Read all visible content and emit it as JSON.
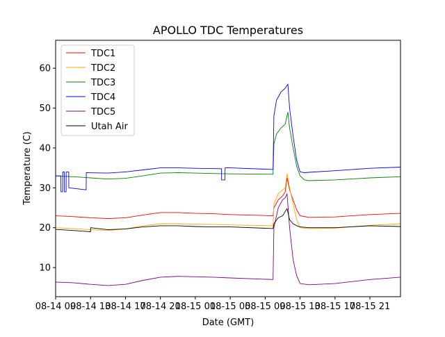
{
  "chart_data": {
    "type": "line",
    "title": "APOLLO TDC Temperatures",
    "xlabel": "Date (GMT)",
    "ylabel": "Temperature (C)",
    "xlim": [
      0,
      39.5
    ],
    "ylim": [
      2.7,
      67
    ],
    "grid": false,
    "legend_position": "top-left",
    "y_ticks": [
      10,
      20,
      30,
      40,
      50,
      60
    ],
    "x_tick_positions": [
      0,
      4,
      8,
      12,
      16,
      20,
      24,
      28,
      32,
      36
    ],
    "x_tick_labels": [
      "08-14 09",
      "08-14 13",
      "08-14 17",
      "08-14 21",
      "08-15 01",
      "08-15 05",
      "08-15 09",
      "08-15 13",
      "08-15 17",
      "08-15 21"
    ],
    "x_unit": "hours since 08-14 09:00",
    "series": [
      {
        "name": "TDC1",
        "color": "#ff0000",
        "x": [
          -0.2,
          2,
          4,
          6,
          8,
          10,
          12,
          14,
          16,
          18,
          20,
          24.9,
          25.0,
          25.5,
          26.0,
          26.3,
          26.5,
          26.8,
          27.2,
          27.6,
          28.0,
          29,
          32,
          36,
          39.5
        ],
        "y": [
          23.0,
          22.8,
          22.5,
          22.3,
          22.5,
          23.2,
          23.8,
          23.8,
          23.6,
          23.5,
          23.3,
          23.0,
          25.0,
          27.0,
          28.0,
          29.0,
          32.5,
          29.5,
          27.0,
          24.5,
          23.0,
          22.6,
          22.7,
          23.3,
          23.6
        ]
      },
      {
        "name": "TDC2",
        "color": "#ffa500",
        "x": [
          -0.2,
          2,
          4,
          6,
          8,
          10,
          12,
          14,
          16,
          18,
          20,
          24.9,
          25.0,
          25.5,
          26.0,
          26.3,
          26.5,
          26.8,
          27.2,
          27.6,
          28.0,
          29,
          32,
          36,
          39.5
        ],
        "y": [
          20.0,
          19.8,
          19.5,
          19.3,
          19.7,
          20.5,
          21.0,
          21.0,
          20.9,
          20.8,
          20.7,
          20.5,
          26.0,
          28.5,
          29.5,
          30.0,
          33.5,
          30.0,
          26.0,
          22.0,
          20.0,
          19.8,
          19.9,
          20.6,
          21.0
        ]
      },
      {
        "name": "TDC3",
        "color": "#008000",
        "x": [
          -0.2,
          2,
          4,
          6,
          8,
          10,
          12,
          14,
          16,
          18,
          20,
          24.9,
          25.0,
          25.3,
          25.8,
          26.3,
          26.6,
          26.8,
          27.2,
          27.6,
          28.0,
          28.5,
          29,
          32,
          36,
          39.5
        ],
        "y": [
          33.0,
          32.8,
          32.5,
          32.2,
          32.4,
          33.0,
          33.7,
          33.8,
          33.7,
          33.6,
          33.5,
          33.4,
          41.0,
          43.5,
          45.0,
          46.0,
          49.0,
          45.0,
          40.0,
          35.5,
          33.0,
          32.0,
          31.8,
          32.0,
          32.5,
          32.8
        ]
      },
      {
        "name": "TDC4",
        "color": "#0000ff",
        "x": [
          -0.2,
          0.6,
          0.61,
          0.8,
          0.81,
          1.0,
          1.01,
          1.2,
          1.21,
          1.5,
          1.51,
          3.5,
          3.51,
          6,
          8,
          10,
          12,
          14,
          16,
          19.0,
          19.01,
          19.4,
          19.41,
          20,
          24.9,
          25.0,
          25.3,
          25.8,
          26.3,
          26.6,
          26.8,
          27.2,
          27.6,
          28.0,
          28.5,
          29,
          32,
          36,
          39.5
        ],
        "y": [
          33.0,
          33.0,
          29.0,
          29.0,
          34.0,
          34.0,
          29.0,
          29.0,
          34.0,
          34.0,
          30.0,
          29.5,
          33.8,
          33.7,
          34.0,
          34.5,
          35.0,
          35.0,
          34.9,
          34.8,
          32.0,
          32.0,
          35.0,
          35.0,
          34.6,
          48.0,
          52.0,
          54.0,
          55.0,
          56.0,
          50.0,
          43.0,
          37.0,
          34.0,
          33.8,
          33.9,
          34.3,
          34.9,
          35.2
        ]
      },
      {
        "name": "TDC5",
        "color": "#800080",
        "x": [
          -0.2,
          2,
          4,
          6,
          8,
          10,
          12,
          14,
          16,
          18,
          20,
          24.9,
          25.0,
          25.5,
          26.0,
          26.3,
          26.5,
          26.8,
          27.2,
          27.6,
          28.0,
          29,
          32,
          36,
          39.5
        ],
        "y": [
          6.4,
          6.2,
          5.8,
          5.5,
          5.8,
          6.8,
          7.6,
          7.8,
          7.7,
          7.6,
          7.4,
          7.0,
          20.0,
          25.0,
          27.0,
          27.5,
          28.5,
          20.0,
          12.0,
          8.0,
          6.0,
          5.7,
          6.0,
          7.0,
          7.6
        ]
      },
      {
        "name": "Utah Air",
        "color": "#000000",
        "x": [
          -0.2,
          2,
          4,
          4.01,
          6,
          8,
          10,
          12,
          14,
          16,
          18,
          20,
          24.9,
          25.0,
          25.5,
          26.0,
          26.5,
          26.8,
          27.2,
          27.6,
          28.0,
          29,
          32,
          36,
          39.5
        ],
        "y": [
          19.6,
          19.3,
          19.0,
          20.0,
          19.5,
          19.7,
          20.2,
          20.5,
          20.5,
          20.3,
          20.2,
          20.2,
          19.8,
          21.0,
          22.5,
          23.0,
          24.8,
          22.0,
          21.0,
          20.5,
          20.2,
          20.0,
          20.0,
          20.5,
          20.3
        ]
      }
    ]
  }
}
